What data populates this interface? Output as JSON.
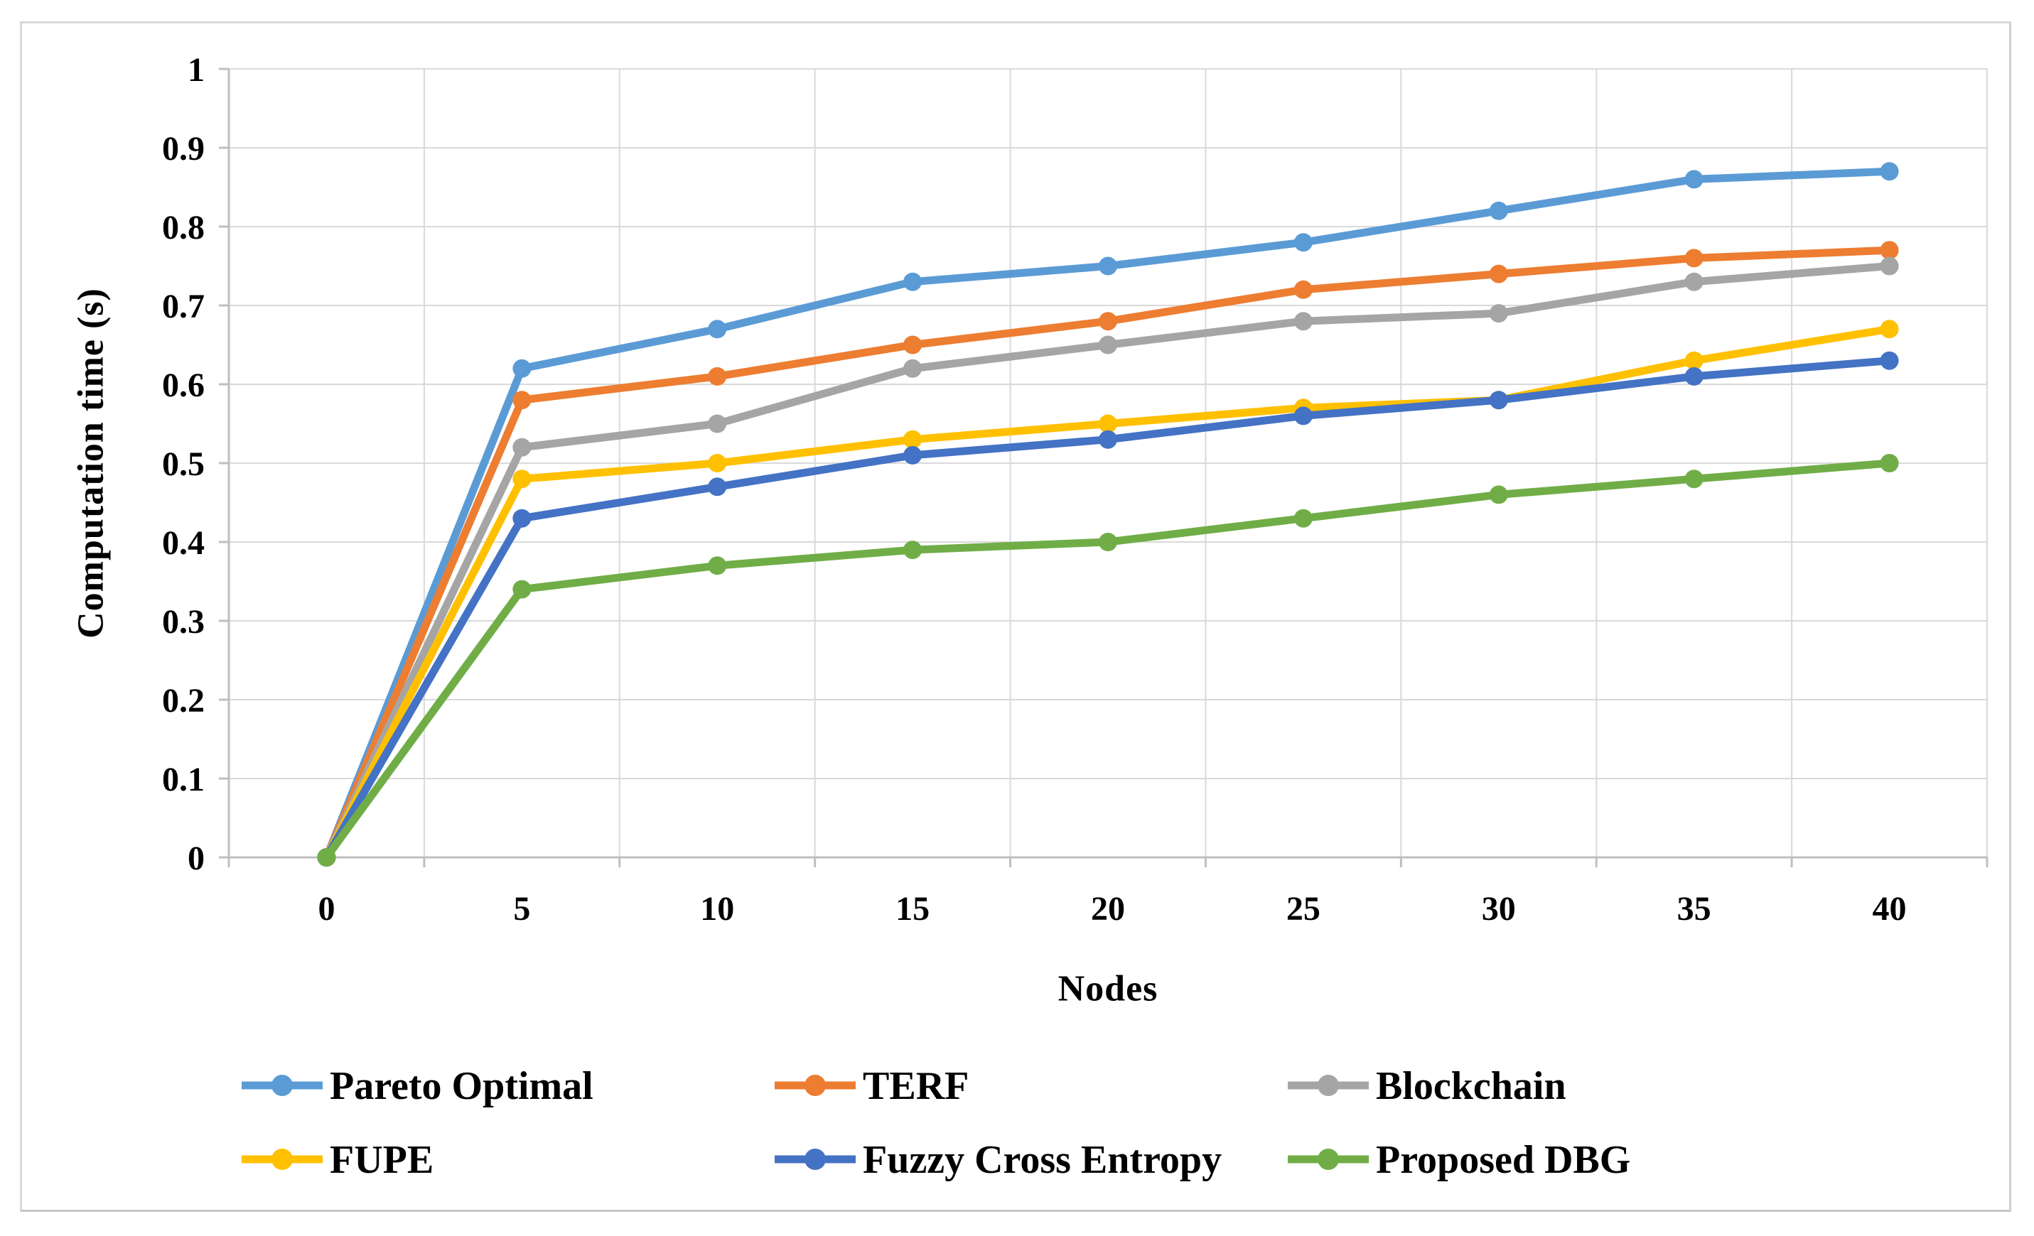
{
  "chart_data": {
    "type": "line",
    "title": "",
    "xlabel": "Nodes",
    "ylabel": "Computation time (s)",
    "x": [
      0,
      5,
      10,
      15,
      20,
      25,
      30,
      35,
      40
    ],
    "x_tick_labels": [
      "0",
      "5",
      "10",
      "15",
      "20",
      "25",
      "30",
      "35",
      "40"
    ],
    "ylim": [
      0,
      1
    ],
    "y_ticks": [
      0,
      0.1,
      0.2,
      0.3,
      0.4,
      0.5,
      0.6,
      0.7,
      0.8,
      0.9,
      1
    ],
    "y_tick_labels": [
      "0",
      "0.1",
      "0.2",
      "0.3",
      "0.4",
      "0.5",
      "0.6",
      "0.7",
      "0.8",
      "0.9",
      "1"
    ],
    "grid": true,
    "legend_position": "bottom",
    "series": [
      {
        "name": "Pareto Optimal",
        "color": "#5B9BD5",
        "values": [
          0,
          0.62,
          0.67,
          0.73,
          0.75,
          0.78,
          0.82,
          0.86,
          0.87
        ]
      },
      {
        "name": "TERF",
        "color": "#ED7D31",
        "values": [
          0,
          0.58,
          0.61,
          0.65,
          0.68,
          0.72,
          0.74,
          0.76,
          0.77
        ]
      },
      {
        "name": "Blockchain",
        "color": "#A5A5A5",
        "values": [
          0,
          0.52,
          0.55,
          0.62,
          0.65,
          0.68,
          0.69,
          0.73,
          0.75
        ]
      },
      {
        "name": "FUPE",
        "color": "#FFC000",
        "values": [
          0,
          0.48,
          0.5,
          0.53,
          0.55,
          0.57,
          0.58,
          0.63,
          0.67
        ]
      },
      {
        "name": "Fuzzy Cross Entropy",
        "color": "#4472C4",
        "values": [
          0,
          0.43,
          0.47,
          0.51,
          0.53,
          0.56,
          0.58,
          0.61,
          0.63
        ]
      },
      {
        "name": "Proposed DBG",
        "color": "#70AD47",
        "values": [
          0,
          0.34,
          0.37,
          0.39,
          0.4,
          0.43,
          0.46,
          0.48,
          0.5
        ]
      }
    ],
    "style_colors": {
      "gridline": "#D9D9D9",
      "axis_line": "#BFBFBF",
      "text": "#000000"
    }
  }
}
